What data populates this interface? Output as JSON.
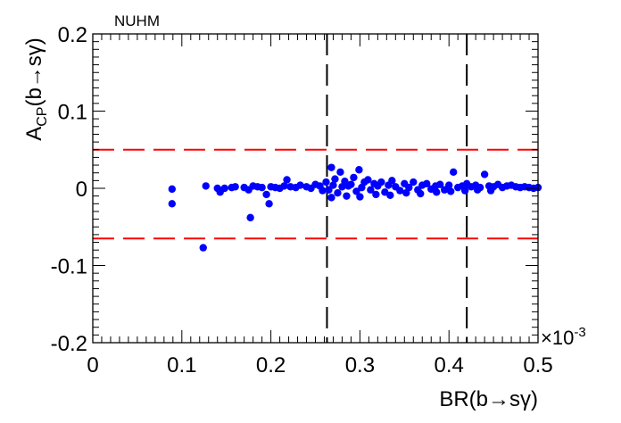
{
  "chart_data": {
    "type": "scatter",
    "title": "NUHM",
    "xlabel": "BR(b→sγ)",
    "ylabel_main": "A",
    "ylabel_sub": "CP",
    "ylabel_rest": "(b→sγ)",
    "x_multiplier_label": "×10",
    "x_multiplier_exp": "-3",
    "xlim": [
      0,
      0.5
    ],
    "ylim": [
      -0.2,
      0.2
    ],
    "x_ticks": [
      0,
      0.1,
      0.2,
      0.3,
      0.4,
      0.5
    ],
    "x_tick_labels": [
      "0",
      "0.1",
      "0.2",
      "0.3",
      "0.4",
      "0.5"
    ],
    "y_ticks": [
      -0.2,
      -0.1,
      0,
      0.1,
      0.2
    ],
    "y_tick_labels": [
      "-0.2",
      "-0.1",
      "0",
      "0.1",
      "0.2"
    ],
    "marker_color": "#0000ff",
    "reference_lines": [
      {
        "orientation": "horizontal",
        "value": 0.05,
        "color": "#ff0000",
        "style": "dashed"
      },
      {
        "orientation": "horizontal",
        "value": -0.065,
        "color": "#ff0000",
        "style": "dashed"
      },
      {
        "orientation": "vertical",
        "value": 0.263,
        "color": "#000000",
        "style": "dashed"
      },
      {
        "orientation": "vertical",
        "value": 0.42,
        "color": "#000000",
        "style": "dashed"
      }
    ],
    "points": [
      [
        0.089,
        -0.001
      ],
      [
        0.089,
        -0.02
      ],
      [
        0.124,
        -0.077
      ],
      [
        0.127,
        0.003
      ],
      [
        0.14,
        0.0
      ],
      [
        0.143,
        -0.005
      ],
      [
        0.148,
        0.0
      ],
      [
        0.156,
        0.001
      ],
      [
        0.16,
        0.002
      ],
      [
        0.17,
        0.001
      ],
      [
        0.175,
        -0.002
      ],
      [
        0.177,
        -0.038
      ],
      [
        0.18,
        0.003
      ],
      [
        0.185,
        0.002
      ],
      [
        0.19,
        0.001
      ],
      [
        0.195,
        -0.008
      ],
      [
        0.198,
        -0.02
      ],
      [
        0.2,
        0.002
      ],
      [
        0.205,
        0.001
      ],
      [
        0.21,
        0.0
      ],
      [
        0.215,
        0.003
      ],
      [
        0.218,
        0.011
      ],
      [
        0.222,
        0.002
      ],
      [
        0.228,
        0.001
      ],
      [
        0.233,
        0.004
      ],
      [
        0.24,
        0.002
      ],
      [
        0.245,
        0.0
      ],
      [
        0.25,
        0.005
      ],
      [
        0.255,
        0.003
      ],
      [
        0.258,
        -0.003
      ],
      [
        0.262,
        0.008
      ],
      [
        0.265,
        -0.002
      ],
      [
        0.268,
        0.027
      ],
      [
        0.27,
        0.004
      ],
      [
        0.272,
        0.012
      ],
      [
        0.275,
        -0.006
      ],
      [
        0.278,
        0.021
      ],
      [
        0.28,
        0.002
      ],
      [
        0.283,
        0.009
      ],
      [
        0.287,
        0.003
      ],
      [
        0.29,
        0.005
      ],
      [
        0.293,
        0.014
      ],
      [
        0.296,
        -0.004
      ],
      [
        0.299,
        0.024
      ],
      [
        0.302,
        0.001
      ],
      [
        0.305,
        0.008
      ],
      [
        0.309,
        0.011
      ],
      [
        0.312,
        -0.002
      ],
      [
        0.316,
        0.006
      ],
      [
        0.32,
        0.003
      ],
      [
        0.324,
        0.008
      ],
      [
        0.328,
        -0.005
      ],
      [
        0.332,
        0.004
      ],
      [
        0.336,
        0.01
      ],
      [
        0.34,
        0.002
      ],
      [
        0.345,
        -0.003
      ],
      [
        0.35,
        0.006
      ],
      [
        0.355,
        0.001
      ],
      [
        0.36,
        0.008
      ],
      [
        0.365,
        -0.002
      ],
      [
        0.37,
        0.004
      ],
      [
        0.375,
        0.006
      ],
      [
        0.38,
        -0.001
      ],
      [
        0.385,
        0.003
      ],
      [
        0.39,
        0.005
      ],
      [
        0.395,
        -0.002
      ],
      [
        0.4,
        0.004
      ],
      [
        0.405,
        0.021
      ],
      [
        0.41,
        0.001
      ],
      [
        0.415,
        0.003
      ],
      [
        0.42,
        0.006
      ],
      [
        0.425,
        0.002
      ],
      [
        0.43,
        0.004
      ],
      [
        0.435,
        0.001
      ],
      [
        0.44,
        0.018
      ],
      [
        0.445,
        0.003
      ],
      [
        0.45,
        0.002
      ],
      [
        0.455,
        0.005
      ],
      [
        0.46,
        0.001
      ],
      [
        0.465,
        0.003
      ],
      [
        0.47,
        0.004
      ],
      [
        0.475,
        0.002
      ],
      [
        0.48,
        0.001
      ],
      [
        0.485,
        0.002
      ],
      [
        0.49,
        0.001
      ],
      [
        0.495,
        0.0
      ],
      [
        0.5,
        0.001
      ],
      [
        0.268,
        -0.012
      ],
      [
        0.285,
        -0.01
      ],
      [
        0.3,
        -0.011
      ],
      [
        0.318,
        -0.008
      ],
      [
        0.334,
        -0.009
      ],
      [
        0.352,
        -0.006
      ],
      [
        0.368,
        -0.007
      ],
      [
        0.386,
        -0.005
      ],
      [
        0.402,
        -0.004
      ],
      [
        0.418,
        -0.003
      ],
      [
        0.432,
        -0.002
      ],
      [
        0.447,
        -0.003
      ]
    ]
  }
}
